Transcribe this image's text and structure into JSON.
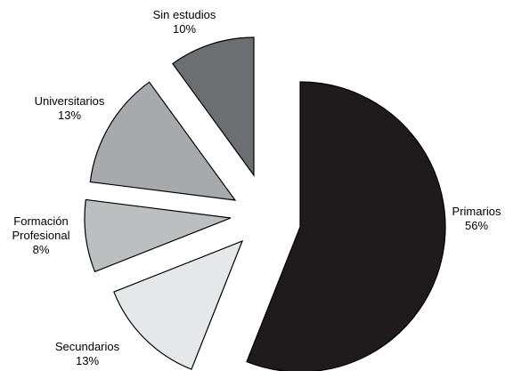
{
  "chart_data": {
    "type": "pie",
    "title": "",
    "legend": "none",
    "slices": [
      {
        "label": "Primarios",
        "value": 56,
        "value_label": "56%",
        "color": "#1f1b1c"
      },
      {
        "label": "Secundarios",
        "value": 13,
        "value_label": "13%",
        "color": "#e6e7e8"
      },
      {
        "label": "Formación Profesional",
        "value": 8,
        "value_label": "8%",
        "color": "#bcbec0"
      },
      {
        "label": "Universitarios",
        "value": 13,
        "value_label": "13%",
        "color": "#a7a9ac"
      },
      {
        "label": "Sin estudios",
        "value": 10,
        "value_label": "10%",
        "color": "#6d6e71"
      }
    ]
  }
}
